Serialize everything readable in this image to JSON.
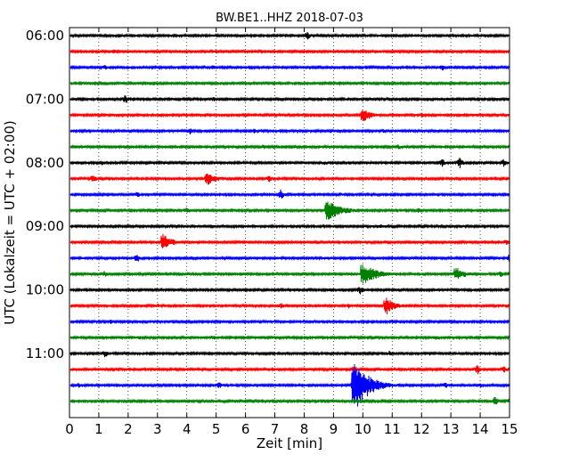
{
  "chart_data": {
    "type": "line",
    "title": "BW.BE1..HHZ 2018-07-03",
    "xlabel": "Zeit  [min]",
    "ylabel": "UTC (Lokalzeit = UTC + 02:00)",
    "xlim": [
      0,
      15
    ],
    "x_ticks": [
      "0",
      "1",
      "2",
      "3",
      "4",
      "5",
      "6",
      "7",
      "8",
      "9",
      "10",
      "11",
      "12",
      "13",
      "14",
      "15"
    ],
    "y_ticks": [
      {
        "row": 0,
        "label": "06:00"
      },
      {
        "row": 4,
        "label": "07:00"
      },
      {
        "row": 8,
        "label": "08:00"
      },
      {
        "row": 12,
        "label": "09:00"
      },
      {
        "row": 16,
        "label": "10:00"
      },
      {
        "row": 20,
        "label": "11:00"
      }
    ],
    "grid": "vertical dotted",
    "row_colors": [
      "#000000",
      "#ff0000",
      "#0000ff",
      "#008000"
    ],
    "series": [
      {
        "start": "06:00",
        "events": [
          [
            8.1,
            5
          ]
        ]
      },
      {
        "start": "06:15",
        "events": [
          [
            1.5,
            3
          ]
        ]
      },
      {
        "start": "06:30",
        "events": [
          [
            1.2,
            3
          ],
          [
            4.9,
            3
          ],
          [
            12.7,
            4
          ]
        ]
      },
      {
        "start": "06:45",
        "events": [
          [
            9.2,
            3
          ]
        ]
      },
      {
        "start": "07:00",
        "events": [
          [
            1.9,
            5
          ],
          [
            4.9,
            3
          ]
        ]
      },
      {
        "start": "07:15",
        "events": [
          [
            3.1,
            3
          ],
          [
            10.0,
            8
          ],
          [
            12.0,
            3
          ]
        ]
      },
      {
        "start": "07:30",
        "events": [
          [
            4.1,
            4
          ],
          [
            6.3,
            3
          ],
          [
            10.7,
            3
          ]
        ]
      },
      {
        "start": "07:45",
        "events": [
          [
            6.6,
            3
          ],
          [
            11.2,
            3
          ]
        ]
      },
      {
        "start": "08:00",
        "events": [
          [
            1.1,
            3
          ],
          [
            8.7,
            3
          ],
          [
            12.7,
            5
          ],
          [
            13.3,
            6
          ],
          [
            14.8,
            5
          ]
        ]
      },
      {
        "start": "08:15",
        "events": [
          [
            0.8,
            5
          ],
          [
            4.7,
            8
          ],
          [
            6.8,
            4
          ]
        ]
      },
      {
        "start": "08:30",
        "events": [
          [
            2.3,
            4
          ],
          [
            7.2,
            6
          ]
        ]
      },
      {
        "start": "08:45",
        "events": [
          [
            4.0,
            4
          ],
          [
            8.8,
            12
          ],
          [
            11.9,
            4
          ]
        ]
      },
      {
        "start": "09:00",
        "events": [
          [
            10.6,
            3
          ]
        ]
      },
      {
        "start": "09:15",
        "events": [
          [
            3.2,
            10
          ],
          [
            14.9,
            4
          ]
        ]
      },
      {
        "start": "09:30",
        "events": [
          [
            2.3,
            5
          ],
          [
            15.0,
            5
          ]
        ]
      },
      {
        "start": "09:45",
        "events": [
          [
            1.2,
            4
          ],
          [
            10.0,
            12
          ],
          [
            13.2,
            8
          ],
          [
            14.7,
            4
          ]
        ]
      },
      {
        "start": "10:00",
        "events": [
          [
            8.9,
            3
          ],
          [
            9.9,
            5
          ]
        ]
      },
      {
        "start": "10:15",
        "events": [
          [
            3.0,
            3
          ],
          [
            7.2,
            4
          ],
          [
            9.5,
            3
          ],
          [
            10.8,
            10
          ]
        ]
      },
      {
        "start": "10:30",
        "events": [
          [
            1.4,
            3
          ]
        ]
      },
      {
        "start": "10:45",
        "events": [
          [
            2.4,
            3
          ],
          [
            4.9,
            3
          ],
          [
            12.5,
            3
          ]
        ]
      },
      {
        "start": "11:00",
        "events": [
          [
            1.2,
            5
          ],
          [
            10.9,
            3
          ]
        ]
      },
      {
        "start": "11:15",
        "events": [
          [
            9.7,
            5
          ],
          [
            13.9,
            6
          ],
          [
            14.8,
            4
          ]
        ]
      },
      {
        "start": "11:30",
        "events": [
          [
            0.3,
            3
          ],
          [
            5.1,
            4
          ],
          [
            9.7,
            30
          ],
          [
            12.8,
            4
          ],
          [
            14.0,
            3
          ]
        ]
      },
      {
        "start": "11:45",
        "events": [
          [
            14.5,
            6
          ],
          [
            15.0,
            4
          ]
        ]
      }
    ]
  }
}
